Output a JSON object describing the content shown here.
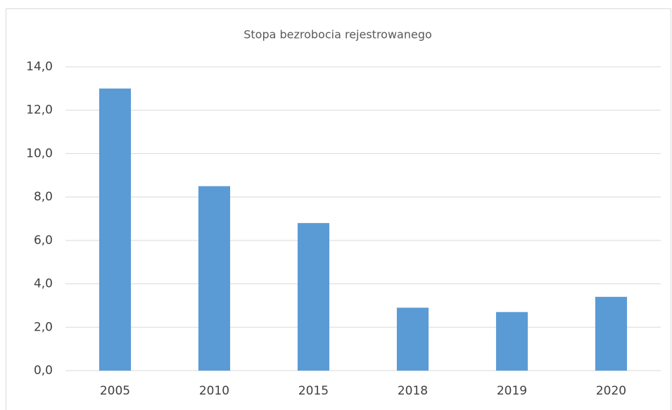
{
  "chart_data": {
    "type": "bar",
    "title": "Stopa bezrobocia rejestrowanego",
    "categories": [
      "2005",
      "2010",
      "2015",
      "2018",
      "2019",
      "2020"
    ],
    "values": [
      13.0,
      8.5,
      6.8,
      2.9,
      2.7,
      3.4
    ],
    "color": "#5b9bd5",
    "ylim": [
      0,
      14
    ],
    "yticks": [
      {
        "value": 0,
        "label": "0,0"
      },
      {
        "value": 2,
        "label": "2,0"
      },
      {
        "value": 4,
        "label": "4,0"
      },
      {
        "value": 6,
        "label": "6,0"
      },
      {
        "value": 8,
        "label": "8,0"
      },
      {
        "value": 10,
        "label": "10,0"
      },
      {
        "value": 12,
        "label": "12,0"
      },
      {
        "value": 14,
        "label": "14,0"
      }
    ],
    "grid": true
  }
}
